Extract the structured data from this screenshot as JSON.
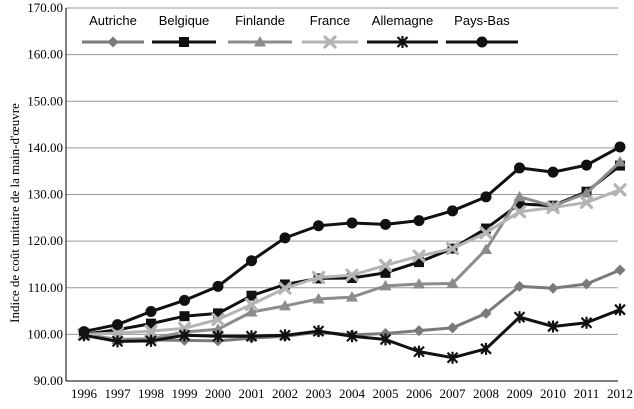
{
  "chart_data": {
    "type": "line",
    "ylabel": "Indice de coût unitaire de la main-d'œuvre",
    "xlabel": "",
    "title": "",
    "ylim": [
      90,
      170
    ],
    "yticks": [
      90,
      100,
      110,
      120,
      130,
      140,
      150,
      160,
      170
    ],
    "ytick_labels": [
      "90.00",
      "100.00",
      "110.00",
      "120.00",
      "130.00",
      "140.00",
      "150.00",
      "160.00",
      "170.00"
    ],
    "grid": "horizontal",
    "legend_position": "top",
    "x": [
      "1996",
      "1997",
      "1998",
      "1999",
      "2000",
      "2001",
      "2002",
      "2003",
      "2004",
      "2005",
      "2006",
      "2007",
      "2008",
      "2009",
      "2010",
      "2011",
      "2012"
    ],
    "series": [
      {
        "name": "Autriche",
        "color": "#7a7a7a",
        "marker": "diamond",
        "values": [
          100.0,
          98.8,
          98.8,
          98.7,
          98.6,
          99.2,
          99.6,
          100.5,
          99.9,
          100.2,
          100.8,
          101.4,
          104.5,
          110.3,
          109.9,
          110.8,
          113.8
        ]
      },
      {
        "name": "Belgique",
        "color": "#111111",
        "marker": "square",
        "values": [
          100.0,
          101.0,
          102.3,
          103.9,
          104.5,
          108.3,
          110.7,
          112.0,
          112.1,
          113.2,
          115.5,
          118.4,
          122.7,
          128.0,
          127.6,
          130.6,
          136.2
        ]
      },
      {
        "name": "Finlande",
        "color": "#8c8c8c",
        "marker": "triangle",
        "values": [
          100.0,
          98.9,
          99.1,
          100.5,
          101.1,
          104.8,
          106.1,
          107.6,
          108.0,
          110.4,
          110.8,
          110.9,
          118.2,
          129.5,
          127.5,
          130.3,
          137.0
        ]
      },
      {
        "name": "France",
        "color": "#b4b4b4",
        "marker": "x",
        "values": [
          100.0,
          100.3,
          100.7,
          101.3,
          103.2,
          106.4,
          109.9,
          112.2,
          112.7,
          114.8,
          116.8,
          118.4,
          121.8,
          126.3,
          127.2,
          128.3,
          131.0
        ]
      },
      {
        "name": "Allemagne",
        "color": "#111111",
        "marker": "star",
        "values": [
          99.8,
          98.5,
          98.6,
          99.8,
          99.6,
          99.6,
          99.8,
          100.7,
          99.6,
          98.9,
          96.3,
          95.0,
          96.9,
          103.7,
          101.7,
          102.5,
          105.3
        ]
      },
      {
        "name": "Pays-Bas",
        "color": "#111111",
        "marker": "circle",
        "values": [
          100.6,
          102.1,
          104.9,
          107.3,
          110.3,
          115.8,
          120.7,
          123.3,
          123.9,
          123.6,
          124.4,
          126.5,
          129.5,
          135.7,
          134.8,
          136.3,
          140.2
        ]
      }
    ]
  }
}
